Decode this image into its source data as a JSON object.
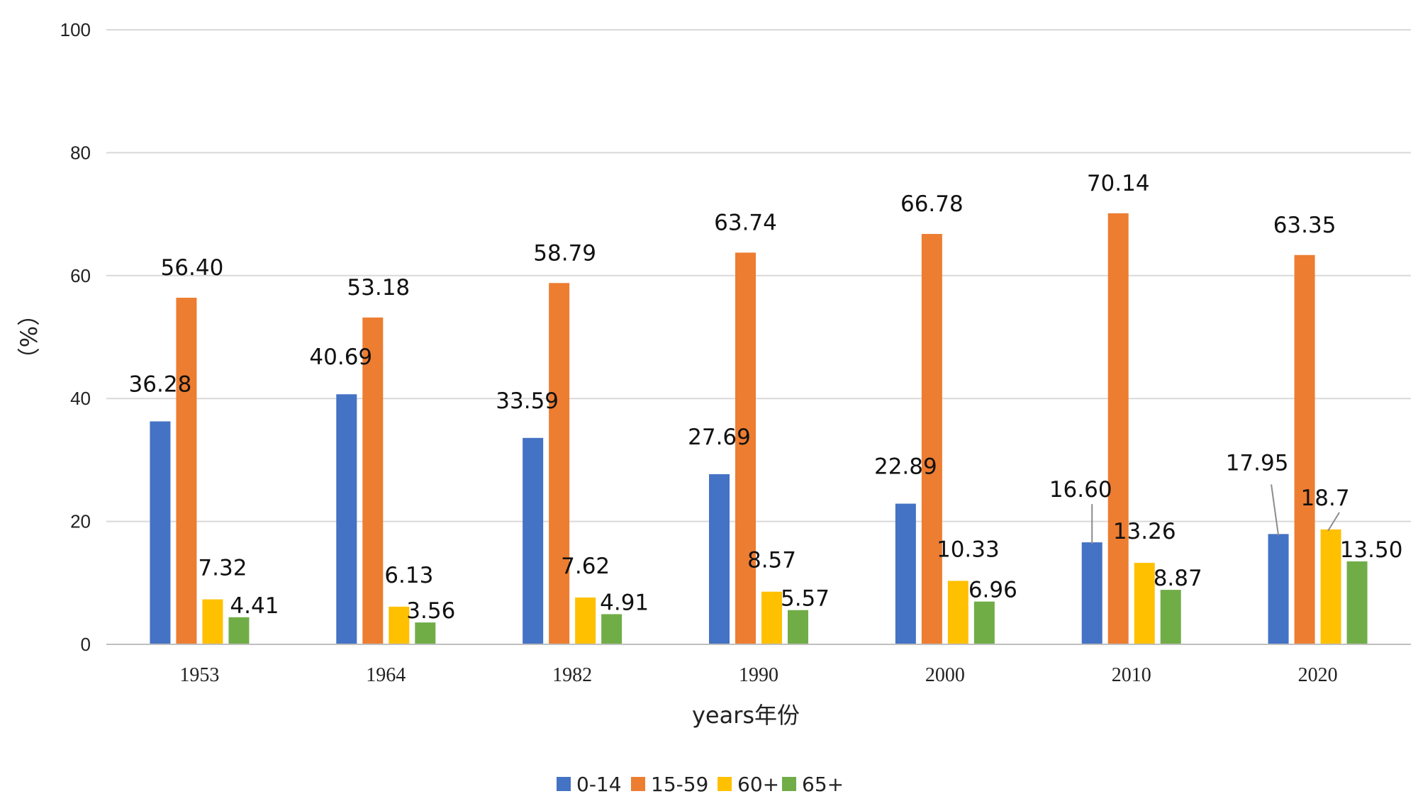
{
  "chart_data": {
    "type": "bar",
    "title": "",
    "xlabel": "years年份",
    "ylabel": "（%）",
    "ylim": [
      0,
      100
    ],
    "yticks": [
      0,
      20,
      40,
      60,
      80,
      100
    ],
    "grid": true,
    "legend_position": "bottom",
    "categories": [
      "1953",
      "1964",
      "1982",
      "1990",
      "2000",
      "2010",
      "2020"
    ],
    "series": [
      {
        "name": "0-14",
        "color": "#4472C4",
        "values": [
          36.28,
          40.69,
          33.59,
          27.69,
          22.89,
          16.6,
          17.95
        ],
        "labels": [
          "36.28",
          "40.69",
          "33.59",
          "27.69",
          "22.89",
          "16.60",
          "17.95"
        ]
      },
      {
        "name": "15-59",
        "color": "#ED7D31",
        "values": [
          56.4,
          53.18,
          58.79,
          63.74,
          66.78,
          70.14,
          63.35
        ],
        "labels": [
          "56.40",
          "53.18",
          "58.79",
          "63.74",
          "66.78",
          "70.14",
          "63.35"
        ]
      },
      {
        "name": "60+",
        "color": "#FFC000",
        "values": [
          7.32,
          6.13,
          7.62,
          8.57,
          10.33,
          13.26,
          18.7
        ],
        "labels": [
          "7.32",
          "6.13",
          "7.62",
          "8.57",
          "10.33",
          "13.26",
          "18.7"
        ]
      },
      {
        "name": "65+",
        "color": "#70AD47",
        "values": [
          4.41,
          3.56,
          4.91,
          5.57,
          6.96,
          8.87,
          13.5
        ],
        "labels": [
          "4.41",
          "3.56",
          "4.91",
          "5.57",
          "6.96",
          "8.87",
          "13.50"
        ]
      }
    ]
  }
}
